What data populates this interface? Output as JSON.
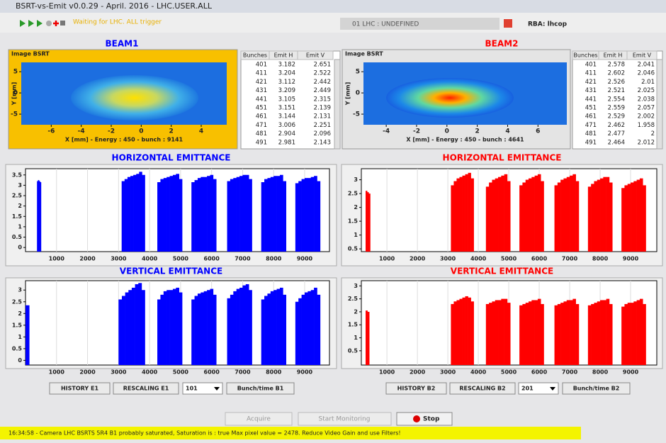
{
  "window": {
    "title": "BSRT-vs-Emit v0.0.29 - April. 2016  - LHC.USER.ALL"
  },
  "toolbar": {
    "status": "Waiting for LHC. ALL trigger",
    "context": "01 LHC : UNDEFINED",
    "rba": "RBA: lhcop"
  },
  "beams": [
    {
      "title": "BEAM1",
      "color": "#0000ff",
      "image": {
        "label": "Image BSRT",
        "xlabel": "X [mm] - Energy : 450 - bunch : 9141",
        "ylabel": "Y [mm]",
        "xticks": [
          -6,
          -4,
          -2,
          0,
          2,
          4
        ],
        "xlim": [
          -8,
          5.7
        ],
        "yticks": [
          5,
          0,
          -5
        ],
        "ylim": [
          -7.5,
          7.2
        ]
      },
      "table": {
        "columns": [
          "Bunches",
          "Emit H",
          "Emit V"
        ],
        "rows": [
          [
            "401",
            "3.182",
            "2.651"
          ],
          [
            "411",
            "3.204",
            "2.522"
          ],
          [
            "421",
            "3.112",
            "2.442"
          ],
          [
            "431",
            "3.209",
            "2.449"
          ],
          [
            "441",
            "3.105",
            "2.315"
          ],
          [
            "451",
            "3.151",
            "2.139"
          ],
          [
            "461",
            "3.144",
            "2.131"
          ],
          [
            "471",
            "3.006",
            "2.251"
          ],
          [
            "481",
            "2.904",
            "2.096"
          ],
          [
            "491",
            "2.981",
            "2.143"
          ]
        ]
      },
      "charts": [
        {
          "title": "HORIZONTAL EMITTANCE",
          "xlim": [
            0,
            9800
          ],
          "xticks": [
            1000,
            2000,
            3000,
            4000,
            5000,
            6000,
            7000,
            8000,
            9000
          ],
          "ylim": [
            -0.2,
            3.8
          ],
          "yticks": [
            0,
            0.5,
            1,
            1.5,
            2,
            2.5,
            3,
            3.5
          ],
          "trains": [
            {
              "start": 370,
              "end": 500,
              "values": [
                3.2,
                3.25,
                3.2,
                3.15
              ]
            },
            {
              "start": 3100,
              "end": 3850,
              "values": [
                3.2,
                3.3,
                3.4,
                3.45,
                3.5,
                3.55,
                3.65,
                3.5
              ]
            },
            {
              "start": 4250,
              "end": 5050,
              "values": [
                3.15,
                3.3,
                3.35,
                3.4,
                3.45,
                3.5,
                3.55,
                3.3
              ]
            },
            {
              "start": 5350,
              "end": 6150,
              "values": [
                3.15,
                3.25,
                3.35,
                3.4,
                3.4,
                3.45,
                3.5,
                3.3
              ]
            },
            {
              "start": 6500,
              "end": 7300,
              "values": [
                3.2,
                3.3,
                3.35,
                3.4,
                3.45,
                3.5,
                3.5,
                3.3
              ]
            },
            {
              "start": 7600,
              "end": 8400,
              "values": [
                3.15,
                3.3,
                3.35,
                3.4,
                3.45,
                3.45,
                3.5,
                3.2
              ]
            },
            {
              "start": 8700,
              "end": 9500,
              "values": [
                3.1,
                3.2,
                3.3,
                3.35,
                3.35,
                3.4,
                3.45,
                3.2
              ]
            }
          ]
        },
        {
          "title": "VERTICAL EMITTANCE",
          "xlim": [
            0,
            9800
          ],
          "xticks": [
            1000,
            2000,
            3000,
            4000,
            5000,
            6000,
            7000,
            8000,
            9000
          ],
          "ylim": [
            -0.2,
            3.4
          ],
          "yticks": [
            0,
            0.5,
            1,
            1.5,
            2,
            2.5,
            3
          ],
          "trains": [
            {
              "start": 0,
              "end": 120,
              "values": [
                2.35
              ]
            },
            {
              "start": 3000,
              "end": 3850,
              "values": [
                2.6,
                2.75,
                2.9,
                3.0,
                3.1,
                3.25,
                3.3,
                3.0
              ]
            },
            {
              "start": 4250,
              "end": 5050,
              "values": [
                2.6,
                2.8,
                2.95,
                3.0,
                3.0,
                3.05,
                3.1,
                2.9
              ]
            },
            {
              "start": 5350,
              "end": 6150,
              "values": [
                2.6,
                2.75,
                2.85,
                2.9,
                2.95,
                3.0,
                3.05,
                2.8
              ]
            },
            {
              "start": 6500,
              "end": 7300,
              "values": [
                2.65,
                2.8,
                2.95,
                3.05,
                3.1,
                3.2,
                3.25,
                3.0
              ]
            },
            {
              "start": 7600,
              "end": 8400,
              "values": [
                2.6,
                2.75,
                2.85,
                2.95,
                3.0,
                3.05,
                3.1,
                2.8
              ]
            },
            {
              "start": 8700,
              "end": 9500,
              "values": [
                2.5,
                2.65,
                2.8,
                2.9,
                2.95,
                3.0,
                3.1,
                2.8
              ]
            }
          ]
        }
      ],
      "buttons": {
        "history": "HISTORY E1",
        "rescaling": "RESCALING E1",
        "select": "101",
        "bunch": "Bunch/time B1"
      }
    },
    {
      "title": "BEAM2",
      "color": "#ff0000",
      "image": {
        "label": "Image BSRT",
        "xlabel": "X [mm] - Energy : 450 - bunch : 4641",
        "ylabel": "Y [mm]",
        "xticks": [
          -4,
          -2,
          0,
          2,
          4,
          6
        ],
        "xlim": [
          -5.5,
          7.9
        ],
        "yticks": [
          5,
          0,
          -5
        ],
        "ylim": [
          -7.5,
          7.2
        ]
      },
      "table": {
        "columns": [
          "Bunches",
          "Emit H",
          "Emit V"
        ],
        "rows": [
          [
            "401",
            "2.578",
            "2.041"
          ],
          [
            "411",
            "2.602",
            "2.046"
          ],
          [
            "421",
            "2.526",
            "2.01"
          ],
          [
            "431",
            "2.521",
            "2.025"
          ],
          [
            "441",
            "2.554",
            "2.038"
          ],
          [
            "451",
            "2.559",
            "2.057"
          ],
          [
            "461",
            "2.529",
            "2.002"
          ],
          [
            "471",
            "2.462",
            "1.958"
          ],
          [
            "481",
            "2.477",
            "2"
          ],
          [
            "491",
            "2.464",
            "2.012"
          ]
        ]
      },
      "charts": [
        {
          "title": "HORIZONTAL EMITTANCE",
          "xlim": [
            160,
            9860
          ],
          "xticks": [
            1000,
            2000,
            3000,
            4000,
            5000,
            6000,
            7000,
            8000,
            9000
          ],
          "ylim": [
            0.4,
            3.4
          ],
          "yticks": [
            0.5,
            1,
            1.5,
            2,
            2.5,
            3
          ],
          "trains": [
            {
              "start": 300,
              "end": 450,
              "values": [
                2.6,
                2.55,
                2.5
              ]
            },
            {
              "start": 3100,
              "end": 3850,
              "values": [
                2.8,
                2.95,
                3.05,
                3.1,
                3.15,
                3.2,
                3.25,
                3.05
              ]
            },
            {
              "start": 4250,
              "end": 5050,
              "values": [
                2.75,
                2.9,
                3.0,
                3.05,
                3.1,
                3.15,
                3.2,
                2.95
              ]
            },
            {
              "start": 5350,
              "end": 6150,
              "values": [
                2.8,
                2.9,
                3.0,
                3.05,
                3.1,
                3.15,
                3.2,
                2.95
              ]
            },
            {
              "start": 6500,
              "end": 7300,
              "values": [
                2.8,
                2.9,
                3.0,
                3.05,
                3.1,
                3.15,
                3.2,
                2.95
              ]
            },
            {
              "start": 7600,
              "end": 8400,
              "values": [
                2.75,
                2.85,
                2.95,
                3.0,
                3.05,
                3.1,
                3.1,
                2.9
              ]
            },
            {
              "start": 8700,
              "end": 9500,
              "values": [
                2.7,
                2.8,
                2.85,
                2.9,
                2.95,
                3.0,
                3.05,
                2.8
              ]
            }
          ]
        },
        {
          "title": "VERTICAL EMITTANCE",
          "xlim": [
            160,
            9860
          ],
          "xticks": [
            1000,
            2000,
            3000,
            4000,
            5000,
            6000,
            7000,
            8000,
            9000
          ],
          "ylim": [
            -0.05,
            3.2
          ],
          "yticks": [
            0.5,
            1,
            1.5,
            2,
            2.5,
            3
          ],
          "trains": [
            {
              "start": 300,
              "end": 420,
              "values": [
                2.05,
                2.0
              ]
            },
            {
              "start": 3100,
              "end": 3850,
              "values": [
                2.3,
                2.4,
                2.45,
                2.5,
                2.55,
                2.6,
                2.55,
                2.4
              ]
            },
            {
              "start": 4250,
              "end": 5050,
              "values": [
                2.3,
                2.35,
                2.4,
                2.45,
                2.45,
                2.5,
                2.5,
                2.35
              ]
            },
            {
              "start": 5350,
              "end": 6150,
              "values": [
                2.25,
                2.3,
                2.35,
                2.4,
                2.45,
                2.45,
                2.5,
                2.3
              ]
            },
            {
              "start": 6500,
              "end": 7300,
              "values": [
                2.25,
                2.3,
                2.35,
                2.4,
                2.45,
                2.45,
                2.5,
                2.3
              ]
            },
            {
              "start": 7600,
              "end": 8400,
              "values": [
                2.25,
                2.3,
                2.35,
                2.4,
                2.45,
                2.45,
                2.5,
                2.3
              ]
            },
            {
              "start": 8700,
              "end": 9500,
              "values": [
                2.2,
                2.3,
                2.35,
                2.35,
                2.4,
                2.45,
                2.5,
                2.3
              ]
            }
          ]
        }
      ],
      "buttons": {
        "history": "HISTORY B2",
        "rescaling": "RESCALING B2",
        "select": "201",
        "bunch": "Bunch/time B2"
      }
    }
  ],
  "controls": {
    "acquire": "Acquire",
    "monitor": "Start Monitoring",
    "stop": "Stop"
  },
  "statusbar": {
    "message": "16:34:58 - Camera LHC BSRTS 5R4 B1 probably saturated, Saturation is : true Max pixel value = 2478. Reduce Video Gain and use Filters!"
  }
}
